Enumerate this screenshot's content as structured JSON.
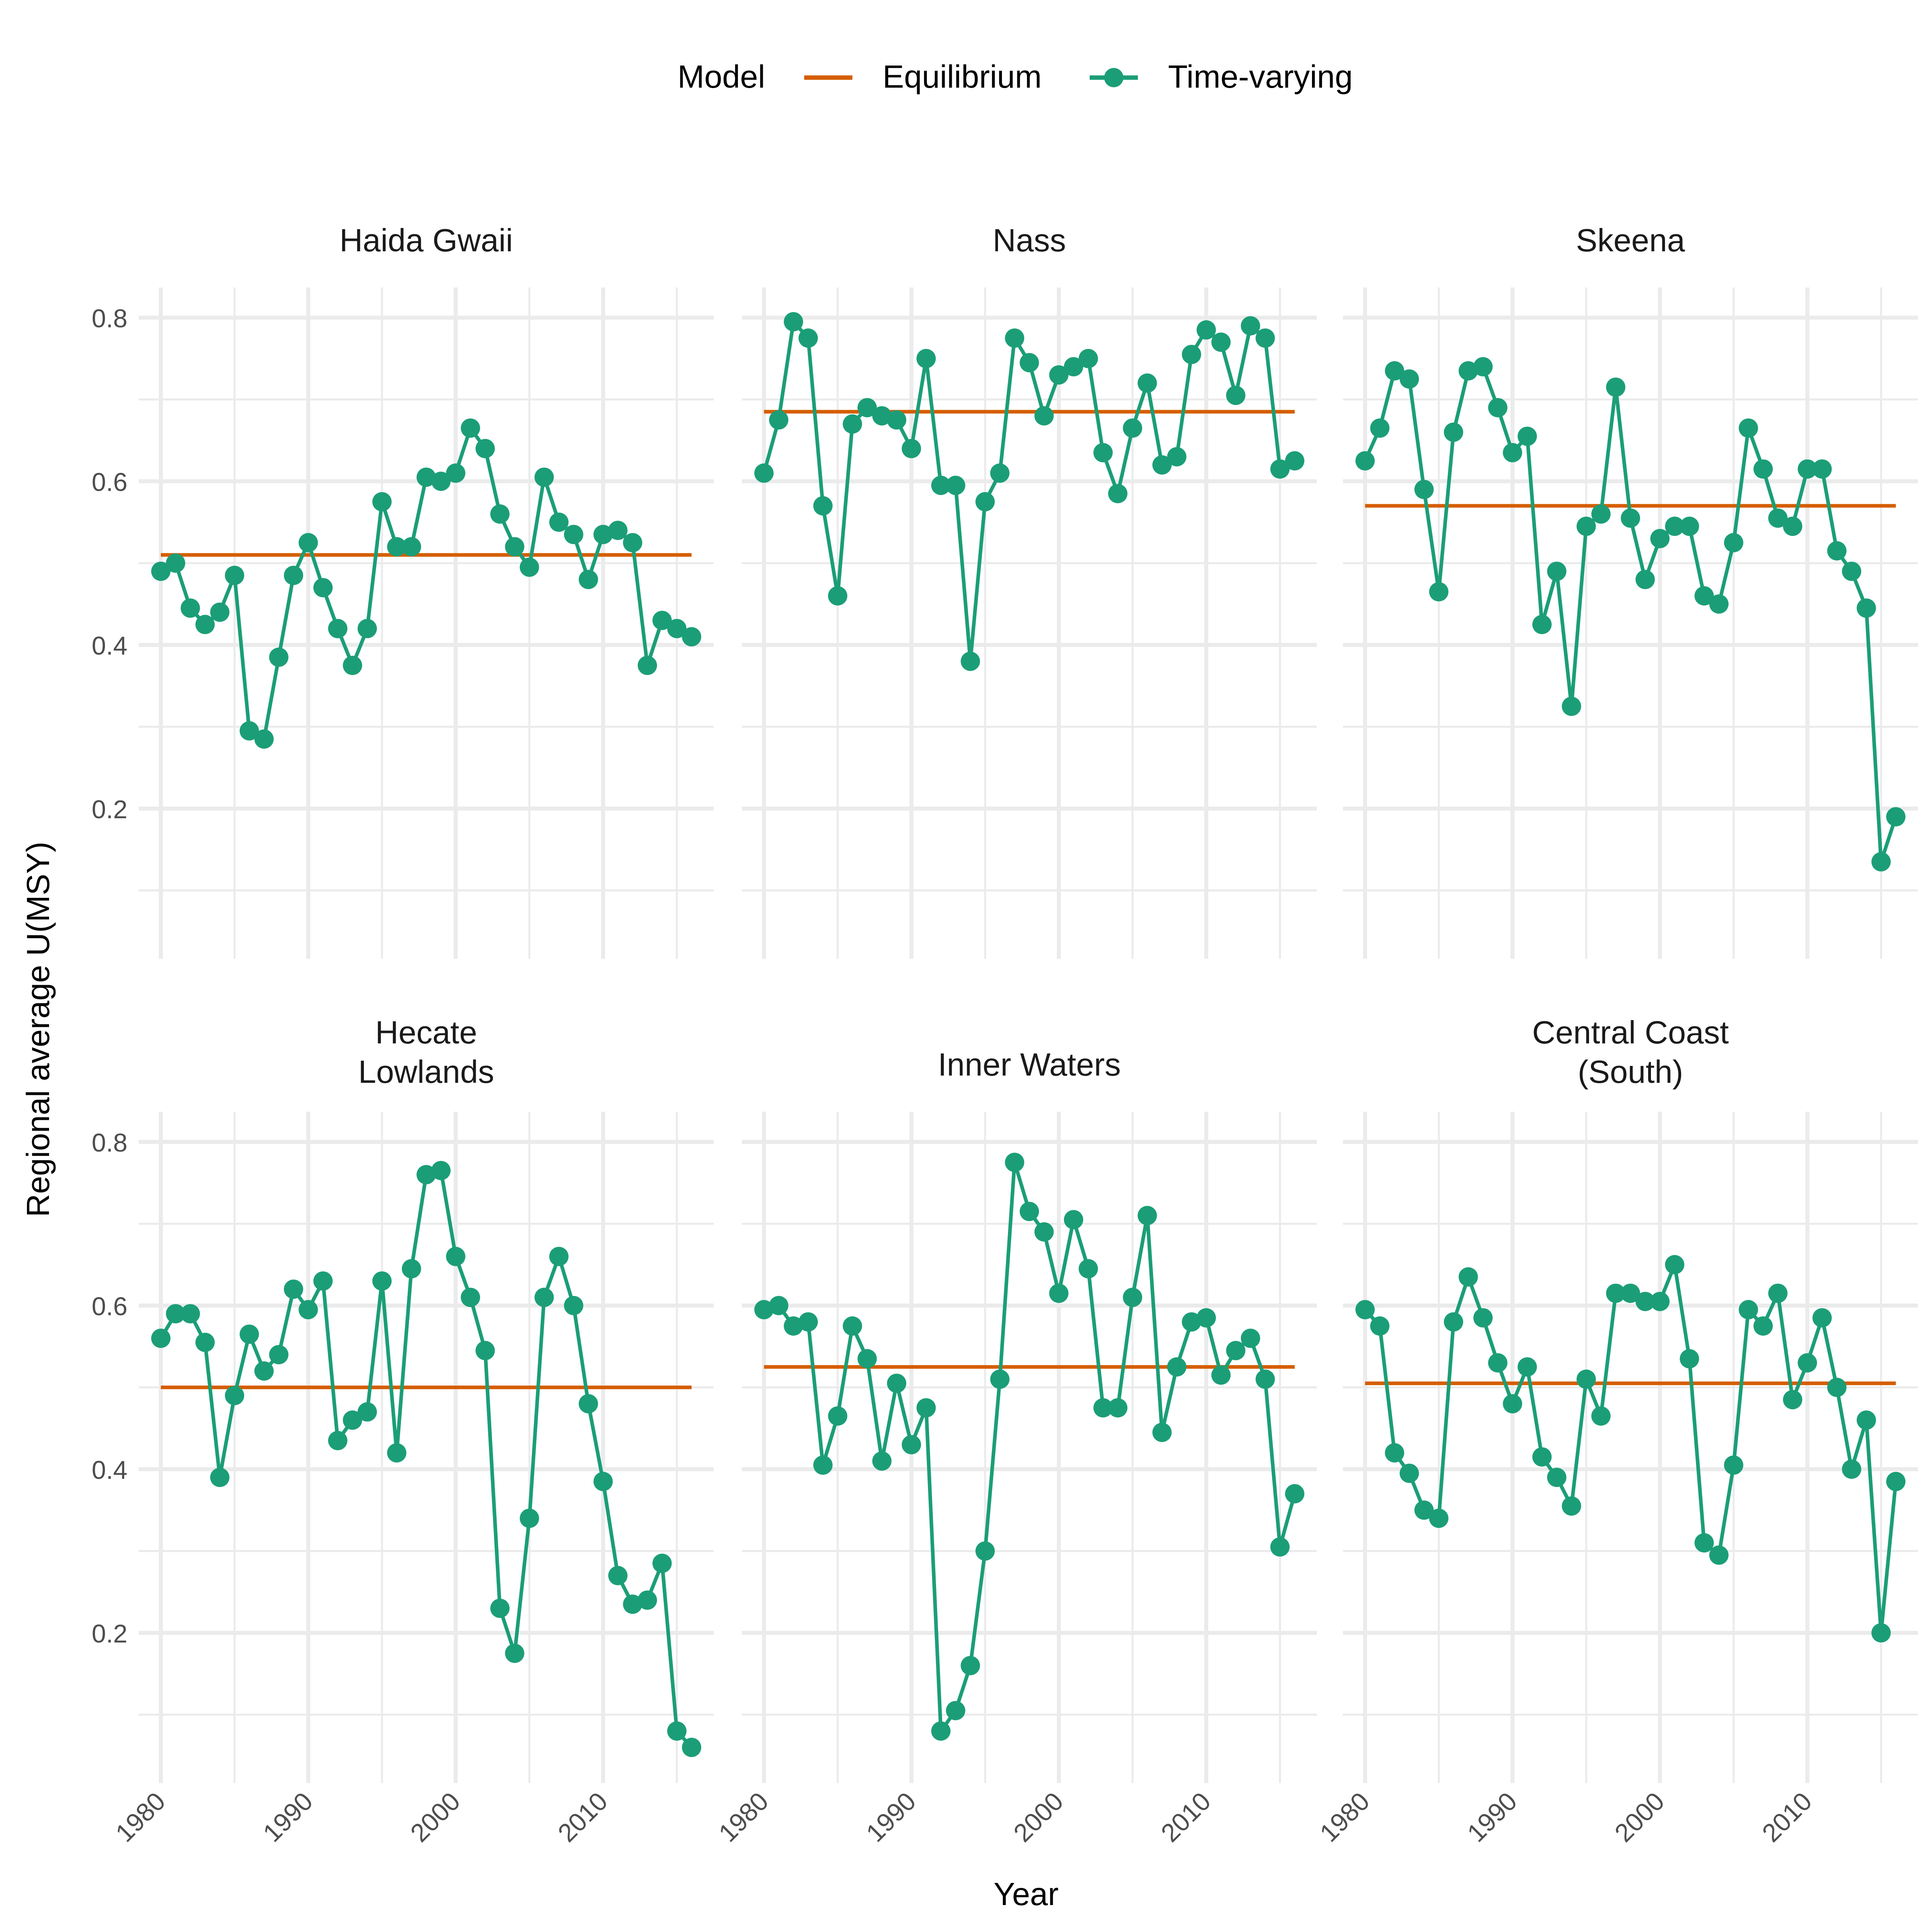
{
  "legend": {
    "title": "Model",
    "items": [
      {
        "label": "Equilibrium",
        "color": "#D55E00"
      },
      {
        "label": "Time-varying",
        "color": "#1B9E77"
      }
    ]
  },
  "axes": {
    "xlabel": "Year",
    "ylabel": "Regional average U(MSY)",
    "xticks": [
      1980,
      1990,
      2000,
      2010
    ],
    "yticks": [
      0.2,
      0.4,
      0.6,
      0.8
    ]
  },
  "chart_data": {
    "type": "line",
    "layout": "facet-grid-2x3",
    "xlabel": "Year",
    "ylabel": "Regional average U(MSY)",
    "xlim": [
      1980,
      2016
    ],
    "ylim": [
      0.0,
      0.83
    ],
    "grid": true,
    "legend_position": "top",
    "years": [
      1980,
      1981,
      1982,
      1983,
      1984,
      1985,
      1986,
      1987,
      1988,
      1989,
      1990,
      1991,
      1992,
      1993,
      1994,
      1995,
      1996,
      1997,
      1998,
      1999,
      2000,
      2001,
      2002,
      2003,
      2004,
      2005,
      2006,
      2007,
      2008,
      2009,
      2010,
      2011,
      2012,
      2013,
      2014,
      2015,
      2016
    ],
    "panels": [
      {
        "title": "Haida Gwaii",
        "equilibrium": 0.51,
        "time_varying": [
          0.49,
          0.5,
          0.445,
          0.425,
          0.44,
          0.485,
          0.295,
          0.285,
          0.385,
          0.485,
          0.525,
          0.47,
          0.42,
          0.375,
          0.42,
          0.575,
          0.52,
          0.52,
          0.605,
          0.6,
          0.61,
          0.665,
          0.64,
          0.56,
          0.52,
          0.495,
          0.605,
          0.55,
          0.535,
          0.48,
          0.535,
          0.54,
          0.525,
          0.375,
          0.43,
          0.42,
          0.41
        ]
      },
      {
        "title": "Nass",
        "equilibrium": 0.685,
        "time_varying": [
          0.61,
          0.675,
          0.795,
          0.775,
          0.57,
          0.46,
          0.67,
          0.69,
          0.68,
          0.675,
          0.64,
          0.75,
          0.595,
          0.595,
          0.38,
          0.575,
          0.61,
          0.775,
          0.745,
          0.68,
          0.73,
          0.74,
          0.75,
          0.635,
          0.585,
          0.665,
          0.72,
          0.62,
          0.63,
          0.755,
          0.785,
          0.77,
          0.705,
          0.79,
          0.775,
          0.615,
          0.625
        ]
      },
      {
        "title": "Skeena",
        "equilibrium": 0.57,
        "time_varying": [
          0.625,
          0.665,
          0.735,
          0.725,
          0.59,
          0.465,
          0.66,
          0.735,
          0.74,
          0.69,
          0.635,
          0.655,
          0.425,
          0.49,
          0.325,
          0.545,
          0.56,
          0.715,
          0.555,
          0.48,
          0.53,
          0.545,
          0.545,
          0.46,
          0.45,
          0.525,
          0.665,
          0.615,
          0.555,
          0.545,
          0.615,
          0.615,
          0.515,
          0.49,
          0.445,
          0.135,
          0.19
        ]
      },
      {
        "title": "Hecate\nLowlands",
        "equilibrium": 0.5,
        "time_varying": [
          0.56,
          0.59,
          0.59,
          0.555,
          0.39,
          0.49,
          0.565,
          0.52,
          0.54,
          0.62,
          0.595,
          0.63,
          0.435,
          0.46,
          0.47,
          0.63,
          0.42,
          0.645,
          0.76,
          0.765,
          0.66,
          0.61,
          0.545,
          0.23,
          0.175,
          0.34,
          0.61,
          0.66,
          0.6,
          0.48,
          0.385,
          0.27,
          0.235,
          0.24,
          0.285,
          0.08,
          0.06
        ]
      },
      {
        "title": "Inner Waters",
        "equilibrium": 0.525,
        "time_varying": [
          0.595,
          0.6,
          0.575,
          0.58,
          0.405,
          0.465,
          0.575,
          0.535,
          0.41,
          0.505,
          0.43,
          0.475,
          0.08,
          0.105,
          0.16,
          0.3,
          0.51,
          0.775,
          0.715,
          0.69,
          0.615,
          0.705,
          0.645,
          0.475,
          0.475,
          0.61,
          0.71,
          0.445,
          0.525,
          0.58,
          0.585,
          0.515,
          0.545,
          0.56,
          0.51,
          0.305,
          0.37
        ]
      },
      {
        "title": "Central Coast\n(South)",
        "equilibrium": 0.505,
        "time_varying": [
          0.595,
          0.575,
          0.42,
          0.395,
          0.35,
          0.34,
          0.58,
          0.635,
          0.585,
          0.53,
          0.48,
          0.525,
          0.415,
          0.39,
          0.355,
          0.51,
          0.465,
          0.615,
          0.615,
          0.605,
          0.605,
          0.65,
          0.535,
          0.31,
          0.295,
          0.405,
          0.595,
          0.575,
          0.615,
          0.485,
          0.53,
          0.585,
          0.5,
          0.4,
          0.46,
          0.2,
          0.385
        ]
      }
    ]
  }
}
